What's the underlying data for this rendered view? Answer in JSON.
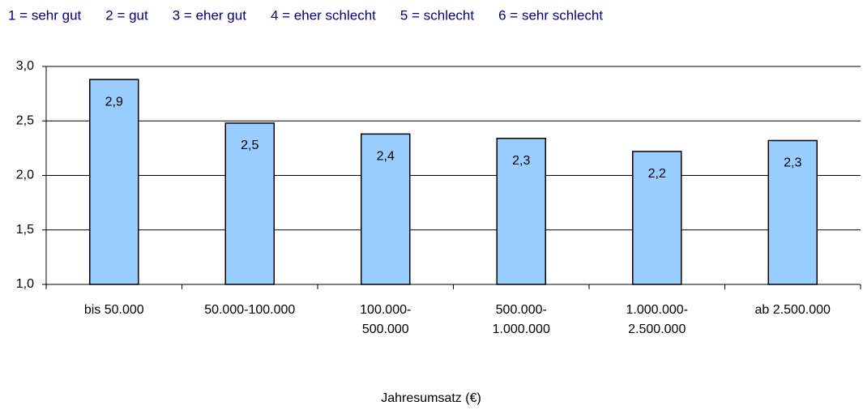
{
  "chart_data": {
    "type": "bar",
    "scale_legend": [
      "1 = sehr gut",
      "2 = gut",
      "3 = eher gut",
      "4 = eher schlecht",
      "5 = schlecht",
      "6 = sehr schlecht"
    ],
    "x_label": "Jahresumsatz (€)",
    "categories": [
      "bis 50.000",
      "50.000-100.000",
      "100.000-\n500.000",
      "500.000-\n1.000.000",
      "1.000.000-\n2.500.000",
      "ab 2.500.000"
    ],
    "values": [
      2.88,
      2.48,
      2.38,
      2.34,
      2.22,
      2.32
    ],
    "value_labels": [
      "2,9",
      "2,5",
      "2,4",
      "2,3",
      "2,2",
      "2,3"
    ],
    "color": "#99ccff",
    "ylim": [
      1,
      3
    ],
    "yticks": [
      {
        "value": 1,
        "label": "1,0"
      },
      {
        "value": 1.5,
        "label": "1,5"
      },
      {
        "value": 2,
        "label": "2,0"
      },
      {
        "value": 2.5,
        "label": "2,5"
      },
      {
        "value": 3,
        "label": "3,0"
      }
    ],
    "grid": true
  }
}
